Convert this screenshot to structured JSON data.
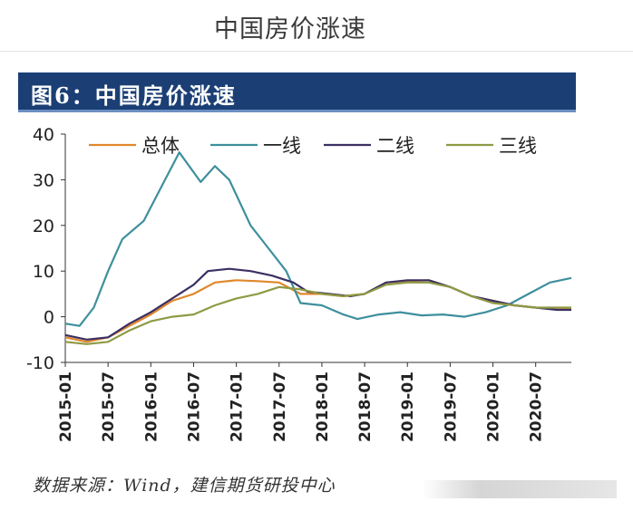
{
  "page": {
    "title": "中国房价涨速",
    "figure_label": "图6：中国房价涨速",
    "source": "数据来源：Wind，建信期货研投中心"
  },
  "colors": {
    "banner": "#1b3f74",
    "series": [
      "#e0872b",
      "#3e8f9c",
      "#3b2f63",
      "#8e9a43"
    ]
  },
  "chart_data": {
    "type": "line",
    "title": "",
    "xlabel": "",
    "ylabel": "",
    "ylim": [
      -10,
      40
    ],
    "yticks": [
      -10,
      0,
      10,
      20,
      30,
      40
    ],
    "xticks": [
      "2015-01",
      "2015-07",
      "2016-01",
      "2016-07",
      "2017-01",
      "2017-07",
      "2018-01",
      "2018-07",
      "2019-01",
      "2019-07",
      "2020-01",
      "2020-07"
    ],
    "xrange": [
      "2015-01",
      "2020-12"
    ],
    "legend_position": "top",
    "grid": false,
    "series": [
      {
        "name": "总体",
        "color": "#e0872b",
        "points": [
          [
            "2015-01",
            -4.5
          ],
          [
            "2015-04",
            -5.5
          ],
          [
            "2015-07",
            -4.5
          ],
          [
            "2015-10",
            -2
          ],
          [
            "2016-01",
            0.5
          ],
          [
            "2016-04",
            3.5
          ],
          [
            "2016-07",
            5
          ],
          [
            "2016-10",
            7.5
          ],
          [
            "2017-01",
            8
          ],
          [
            "2017-04",
            7.8
          ],
          [
            "2017-07",
            7.5
          ],
          [
            "2017-10",
            5
          ],
          [
            "2018-01",
            5
          ],
          [
            "2018-04",
            4.5
          ],
          [
            "2018-07",
            5
          ],
          [
            "2018-10",
            7.5
          ],
          [
            "2019-01",
            7.8
          ],
          [
            "2019-04",
            8
          ],
          [
            "2019-07",
            6.5
          ],
          [
            "2019-10",
            4.5
          ],
          [
            "2020-01",
            3.5
          ],
          [
            "2020-04",
            2.5
          ],
          [
            "2020-07",
            2
          ],
          [
            "2020-10",
            1.8
          ],
          [
            "2020-12",
            1.8
          ]
        ]
      },
      {
        "name": "一线",
        "color": "#3e8f9c",
        "points": [
          [
            "2015-01",
            -1.5
          ],
          [
            "2015-03",
            -2
          ],
          [
            "2015-05",
            2
          ],
          [
            "2015-07",
            10
          ],
          [
            "2015-09",
            17
          ],
          [
            "2015-12",
            21
          ],
          [
            "2016-03",
            30
          ],
          [
            "2016-05",
            36
          ],
          [
            "2016-08",
            29.5
          ],
          [
            "2016-10",
            33
          ],
          [
            "2016-12",
            30
          ],
          [
            "2017-03",
            20
          ],
          [
            "2017-05",
            16
          ],
          [
            "2017-08",
            10
          ],
          [
            "2017-10",
            3
          ],
          [
            "2018-01",
            2.5
          ],
          [
            "2018-04",
            0.5
          ],
          [
            "2018-06",
            -0.5
          ],
          [
            "2018-09",
            0.5
          ],
          [
            "2018-12",
            1
          ],
          [
            "2019-03",
            0.3
          ],
          [
            "2019-06",
            0.5
          ],
          [
            "2019-09",
            0
          ],
          [
            "2019-12",
            1
          ],
          [
            "2020-03",
            2.5
          ],
          [
            "2020-06",
            5
          ],
          [
            "2020-09",
            7.5
          ],
          [
            "2020-12",
            8.5
          ]
        ]
      },
      {
        "name": "二线",
        "color": "#3b2f63",
        "points": [
          [
            "2015-01",
            -4
          ],
          [
            "2015-04",
            -5
          ],
          [
            "2015-07",
            -4.5
          ],
          [
            "2015-10",
            -1.5
          ],
          [
            "2016-01",
            1
          ],
          [
            "2016-04",
            4
          ],
          [
            "2016-07",
            7
          ],
          [
            "2016-09",
            10
          ],
          [
            "2016-12",
            10.5
          ],
          [
            "2017-03",
            10
          ],
          [
            "2017-06",
            9
          ],
          [
            "2017-09",
            7.5
          ],
          [
            "2017-11",
            5.5
          ],
          [
            "2018-02",
            5
          ],
          [
            "2018-05",
            4.5
          ],
          [
            "2018-07",
            5
          ],
          [
            "2018-10",
            7.5
          ],
          [
            "2019-01",
            8
          ],
          [
            "2019-04",
            8
          ],
          [
            "2019-07",
            6.5
          ],
          [
            "2019-10",
            4.5
          ],
          [
            "2020-01",
            3.5
          ],
          [
            "2020-04",
            2.5
          ],
          [
            "2020-07",
            2
          ],
          [
            "2020-10",
            1.5
          ],
          [
            "2020-12",
            1.5
          ]
        ]
      },
      {
        "name": "三线",
        "color": "#8e9a43",
        "points": [
          [
            "2015-01",
            -5.5
          ],
          [
            "2015-04",
            -6
          ],
          [
            "2015-07",
            -5.5
          ],
          [
            "2015-10",
            -3
          ],
          [
            "2016-01",
            -1
          ],
          [
            "2016-04",
            0
          ],
          [
            "2016-07",
            0.5
          ],
          [
            "2016-10",
            2.5
          ],
          [
            "2017-01",
            4
          ],
          [
            "2017-04",
            5
          ],
          [
            "2017-07",
            6.5
          ],
          [
            "2017-10",
            6
          ],
          [
            "2018-01",
            5
          ],
          [
            "2018-04",
            4.5
          ],
          [
            "2018-07",
            5
          ],
          [
            "2018-10",
            7
          ],
          [
            "2019-01",
            7.5
          ],
          [
            "2019-04",
            7.5
          ],
          [
            "2019-07",
            6.5
          ],
          [
            "2019-10",
            4.5
          ],
          [
            "2020-01",
            3
          ],
          [
            "2020-04",
            2.5
          ],
          [
            "2020-07",
            2
          ],
          [
            "2020-10",
            2
          ],
          [
            "2020-12",
            2
          ]
        ]
      }
    ]
  }
}
